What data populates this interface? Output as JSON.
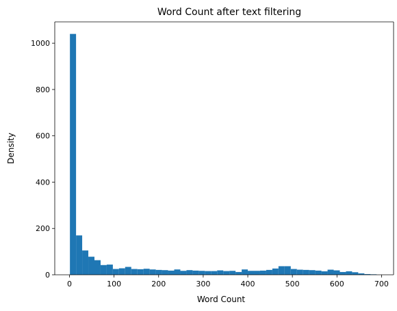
{
  "chart_data": {
    "type": "bar",
    "subtype": "histogram",
    "title": "Word Count after text filtering",
    "xlabel": "Word Count",
    "ylabel": "Density",
    "xlim": [
      -33,
      727
    ],
    "ylim": [
      0,
      1092
    ],
    "xticks": [
      0,
      100,
      200,
      300,
      400,
      500,
      600,
      700
    ],
    "yticks": [
      0,
      200,
      400,
      600,
      800,
      1000
    ],
    "grid": false,
    "bar_color": "#1f77b4",
    "bin_start": 1,
    "bin_width": 13.76,
    "values": [
      1040,
      170,
      105,
      78,
      63,
      42,
      44,
      25,
      28,
      34,
      25,
      24,
      26,
      23,
      21,
      20,
      18,
      23,
      17,
      20,
      18,
      17,
      16,
      16,
      19,
      16,
      17,
      12,
      23,
      17,
      17,
      18,
      21,
      27,
      37,
      37,
      25,
      22,
      21,
      20,
      18,
      15,
      22,
      19,
      12,
      15,
      11,
      6,
      3,
      2
    ]
  }
}
